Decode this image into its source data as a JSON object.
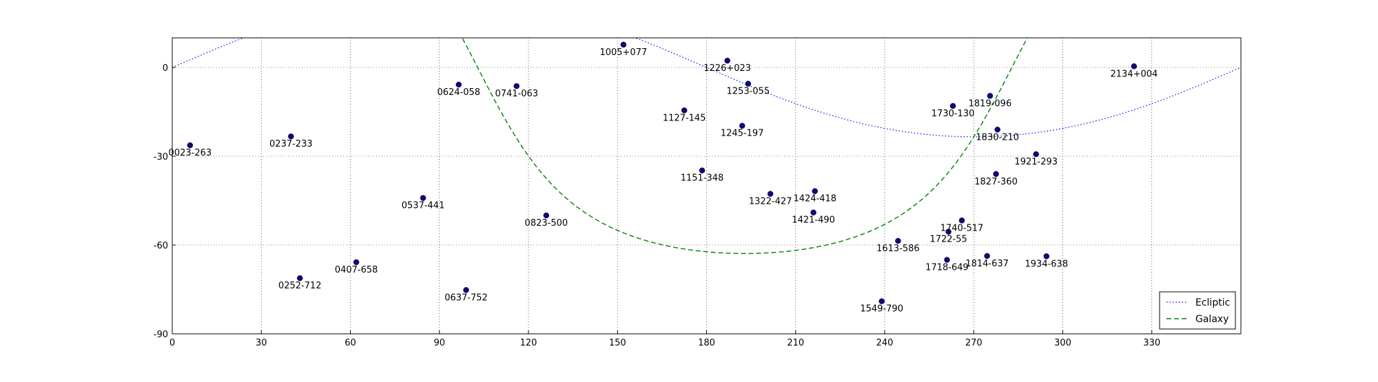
{
  "chart_data": {
    "type": "scatter",
    "title": "",
    "xlabel": "",
    "ylabel": "",
    "xlim": [
      0,
      360
    ],
    "ylim": [
      -90,
      10
    ],
    "x_ticks": [
      0,
      30,
      60,
      90,
      120,
      150,
      180,
      210,
      240,
      270,
      300,
      330
    ],
    "y_ticks": [
      0,
      -30,
      -60,
      -90
    ],
    "grid": true,
    "legend_position": "bottom-right",
    "colors": {
      "points": "#0a0a7a",
      "ecliptic": "#0000ff",
      "galaxy": "#008000"
    },
    "points": [
      {
        "name": "0023-263",
        "x": 6,
        "y": -26.3
      },
      {
        "name": "0237-233",
        "x": 40,
        "y": -23.3
      },
      {
        "name": "0252-712",
        "x": 43,
        "y": -71.2
      },
      {
        "name": "0407-658",
        "x": 62,
        "y": -65.8
      },
      {
        "name": "0537-441",
        "x": 84.5,
        "y": -44.1
      },
      {
        "name": "0624-058",
        "x": 96.5,
        "y": -5.8
      },
      {
        "name": "0637-752",
        "x": 99,
        "y": -75.2
      },
      {
        "name": "0741-063",
        "x": 116,
        "y": -6.3
      },
      {
        "name": "0823-500",
        "x": 126,
        "y": -50
      },
      {
        "name": "1005+077",
        "x": 152,
        "y": 7.7
      },
      {
        "name": "1127-145",
        "x": 172.5,
        "y": -14.5
      },
      {
        "name": "1151-348",
        "x": 178.5,
        "y": -34.8
      },
      {
        "name": "1226+023",
        "x": 187,
        "y": 2.3
      },
      {
        "name": "1245-197",
        "x": 192,
        "y": -19.7
      },
      {
        "name": "1253-055",
        "x": 194,
        "y": -5.5
      },
      {
        "name": "1322-427",
        "x": 201.5,
        "y": -42.7
      },
      {
        "name": "1421-490",
        "x": 216,
        "y": -49
      },
      {
        "name": "1424-418",
        "x": 216.5,
        "y": -41.8
      },
      {
        "name": "1549-790",
        "x": 239,
        "y": -79
      },
      {
        "name": "1613-586",
        "x": 244.5,
        "y": -58.6
      },
      {
        "name": "1718-649",
        "x": 261,
        "y": -65
      },
      {
        "name": "1722-55",
        "x": 261.5,
        "y": -55.5
      },
      {
        "name": "1730-130",
        "x": 263,
        "y": -13
      },
      {
        "name": "1740-517",
        "x": 266,
        "y": -51.7
      },
      {
        "name": "1814-637",
        "x": 274.5,
        "y": -63.7
      },
      {
        "name": "1819-096",
        "x": 275.5,
        "y": -9.6
      },
      {
        "name": "1827-360",
        "x": 277.5,
        "y": -36
      },
      {
        "name": "1830-210",
        "x": 278,
        "y": -21
      },
      {
        "name": "1921-293",
        "x": 291,
        "y": -29.3
      },
      {
        "name": "1934-638",
        "x": 294.5,
        "y": -63.8
      },
      {
        "name": "2134+004",
        "x": 324,
        "y": 0.4
      }
    ],
    "series": [
      {
        "name": "Ecliptic",
        "style": "dotted",
        "epsilon_deg": 23.44
      },
      {
        "name": "Galaxy",
        "style": "dashed",
        "pole_ra_deg": 192.86,
        "pole_dec_deg": 27.13
      }
    ]
  }
}
